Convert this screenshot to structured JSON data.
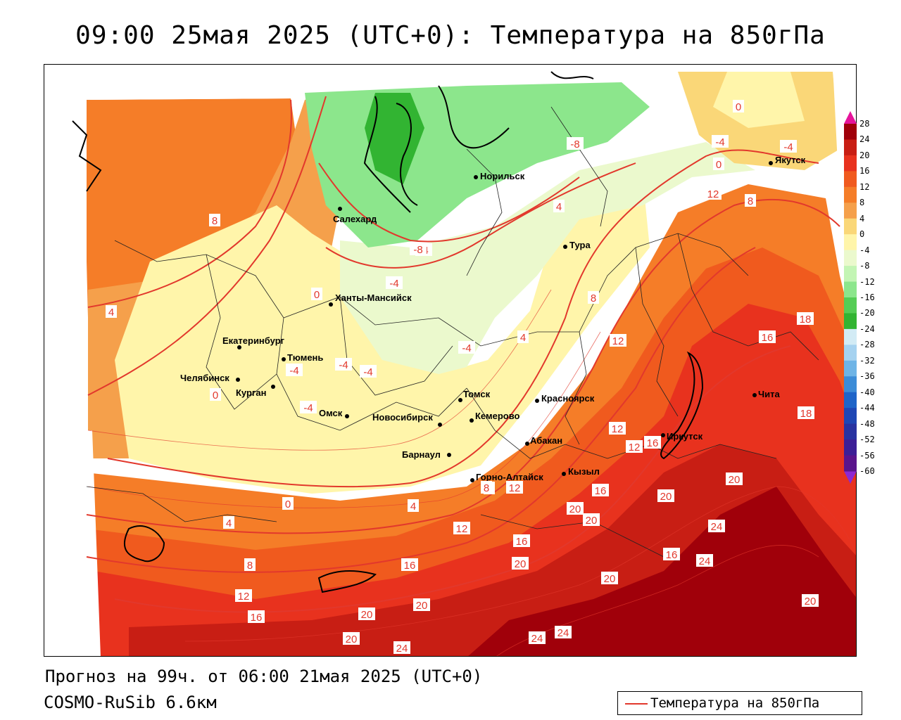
{
  "title": "09:00 25мая 2025 (UTC+0): Температура на 850гПа",
  "footer": {
    "forecast": "Прогноз на 99ч. от 06:00 21мая 2025 (UTC+0)",
    "model": "COSMO-RuSib 6.6км"
  },
  "legend": {
    "label": "Температура на 850гПа",
    "line_color": "#e2382c"
  },
  "colorbar": {
    "labels": [
      "28",
      "24",
      "20",
      "16",
      "12",
      "8",
      "4",
      "0",
      "-4",
      "-8",
      "-12",
      "-16",
      "-20",
      "-24",
      "-28",
      "-32",
      "-36",
      "-40",
      "-44",
      "-48",
      "-52",
      "-56",
      "-60"
    ],
    "colors": [
      "#a0000a",
      "#c81e14",
      "#e8321e",
      "#f05a1e",
      "#f57d28",
      "#f5a04b",
      "#fad778",
      "#fff5aa",
      "#ebf9cd",
      "#c3f5b4",
      "#8ce68c",
      "#55cd55",
      "#32b432",
      "#d2ebf5",
      "#a5d2f0",
      "#6eb4e6",
      "#3c8cd7",
      "#1e64c8",
      "#1e46b4",
      "#2832a0",
      "#3c1e96",
      "#5a148c"
    ],
    "top_arrow_color": "#e6149b",
    "bottom_arrow_color": "#8c28d2"
  },
  "cities": [
    {
      "name": "Норильск"
    },
    {
      "name": "Салехард"
    },
    {
      "name": "Тура"
    },
    {
      "name": "Якутск"
    },
    {
      "name": "Ханты-Мансийск"
    },
    {
      "name": "Екатеринбург"
    },
    {
      "name": "Тюмень"
    },
    {
      "name": "Челябинск"
    },
    {
      "name": "Курган"
    },
    {
      "name": "Омск"
    },
    {
      "name": "Новосибирск"
    },
    {
      "name": "Томск"
    },
    {
      "name": "Кемерово"
    },
    {
      "name": "Красноярск"
    },
    {
      "name": "Барнаул"
    },
    {
      "name": "Абакан"
    },
    {
      "name": "Горно-Алтайск"
    },
    {
      "name": "Кызыл"
    },
    {
      "name": "Иркутск"
    },
    {
      "name": "Чита"
    }
  ],
  "isotherm_labels": [
    "0",
    "-8",
    "-4",
    "-4",
    "0",
    "4",
    "-4",
    "12",
    "8",
    "8",
    "-8",
    "-4",
    "0",
    "4",
    "-4",
    "-4",
    "4",
    "8",
    "-4",
    "12",
    "16",
    "-4",
    "0",
    "-4",
    "12",
    "8",
    "12",
    "16",
    "16",
    "20",
    "8",
    "12",
    "4",
    "0",
    "4",
    "16",
    "12",
    "20",
    "20",
    "20",
    "24",
    "8",
    "16",
    "20",
    "16",
    "24",
    "12",
    "20",
    "20",
    "16",
    "24",
    "20",
    "24",
    "20",
    "20",
    "24",
    "18",
    "18"
  ]
}
